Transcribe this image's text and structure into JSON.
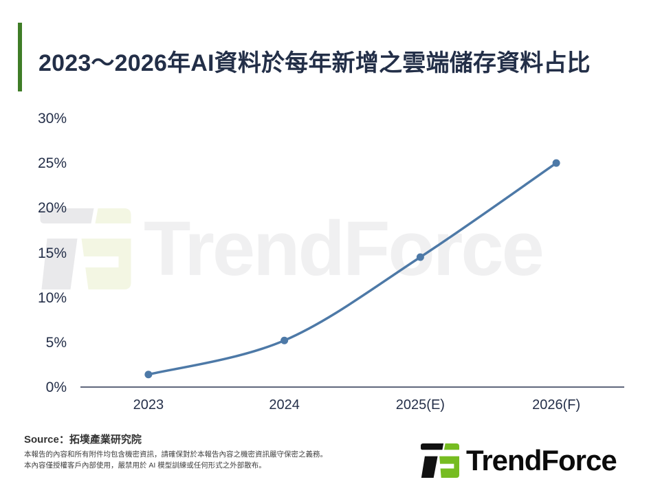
{
  "title": "2023～2026年AI資料於每年新增之雲端儲存資料占比",
  "accent_color": "#3f7d27",
  "watermark_text": "TrendForce",
  "chart_data": {
    "type": "line",
    "title": "2023～2026年AI資料於每年新增之雲端儲存資料占比",
    "categories": [
      "2023",
      "2024",
      "2025(E)",
      "2026(F)"
    ],
    "values": [
      1.4,
      5.2,
      14.5,
      25
    ],
    "unit": "%",
    "xlabel": "",
    "ylabel": "",
    "ylim": [
      0,
      30
    ],
    "ytick_step": 5,
    "ytick_labels": [
      "0%",
      "5%",
      "10%",
      "15%",
      "20%",
      "25%",
      "30%"
    ],
    "grid": false,
    "legend": "none",
    "line_color": "#4d79a7",
    "axis_color": "#2a3550",
    "label_color": "#242f49"
  },
  "footer": {
    "source": "Source：拓墣產業研究院",
    "disclaimer_line1": "本報告的內容和所有附件均包含機密資訊，請確保對於本報告內容之機密資訊嚴守保密之義務。",
    "disclaimer_line2": "本內容僅授權客戶內部使用，嚴禁用於 AI 模型訓練或任何形式之外部散布。",
    "logo_text": "TrendForce"
  },
  "logo_colors": {
    "dark": "#111111",
    "green": "#76bc21"
  },
  "watermark_colors": {
    "dark": "#e9e9eb",
    "green": "#f3f6e3"
  }
}
